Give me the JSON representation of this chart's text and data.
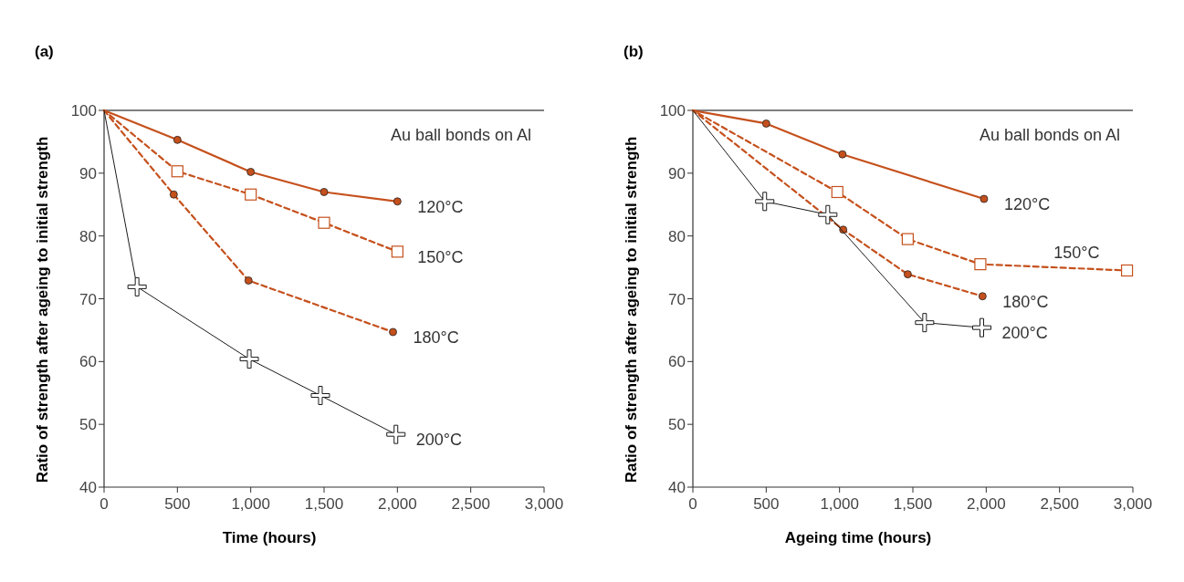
{
  "chart_data": [
    {
      "type": "line",
      "title": "(a)",
      "xlabel": "Time (hours)",
      "ylabel": "Ratio of strength after ageing to initial strength",
      "xlim": [
        0,
        3000
      ],
      "ylim": [
        40,
        100
      ],
      "xticks": [
        0,
        {
          "value": 500,
          "label": "500"
        },
        {
          "value": 1000,
          "label": "1,000"
        },
        {
          "value": 1500,
          "label": "1,500"
        },
        {
          "value": 2000,
          "label": "2,000"
        },
        {
          "value": 2500,
          "label": "2,500"
        },
        {
          "value": 3000,
          "label": "3,000"
        }
      ],
      "yticks": [
        40,
        50,
        60,
        70,
        80,
        90,
        100
      ],
      "annotations": [
        "Au ball bonds on Al"
      ],
      "legend": "right",
      "series": [
        {
          "name": "120°C",
          "color": "#c5501c",
          "marker": "circle",
          "line_style": "solid",
          "x": [
            0,
            500,
            1000,
            1500,
            2000
          ],
          "values": [
            100,
            95.3,
            90.2,
            87.0,
            85.5
          ]
        },
        {
          "name": "150°C",
          "color": "#c5501c",
          "marker": "square",
          "line_style": "dashed",
          "x": [
            0,
            500,
            1000,
            1500,
            2000
          ],
          "values": [
            100,
            90.3,
            86.6,
            82.1,
            77.5
          ]
        },
        {
          "name": "180°C",
          "color": "#c5501c",
          "marker": "circle",
          "line_style": "dashed",
          "x": [
            0,
            475,
            985,
            1970
          ],
          "values": [
            100,
            86.6,
            72.9,
            64.7
          ]
        },
        {
          "name": "200°C",
          "color": "#1a1a1a",
          "marker": "cross",
          "line_style": "solid",
          "x": [
            0,
            225,
            990,
            1475,
            1990
          ],
          "values": [
            100,
            71.9,
            60.4,
            54.6,
            48.4
          ]
        }
      ]
    },
    {
      "type": "line",
      "title": "(b)",
      "xlabel": "Ageing time (hours)",
      "ylabel": "Ratio of strength after ageing to initial strength",
      "xlim": [
        0,
        3000
      ],
      "ylim": [
        40,
        100
      ],
      "xticks": [
        0,
        {
          "value": 500,
          "label": "500"
        },
        {
          "value": 1000,
          "label": "1,000"
        },
        {
          "value": 1500,
          "label": "1,500"
        },
        {
          "value": 2000,
          "label": "2,000"
        },
        {
          "value": 2500,
          "label": "2,500"
        },
        {
          "value": 3000,
          "label": "3,000"
        }
      ],
      "yticks": [
        40,
        50,
        60,
        70,
        80,
        90,
        100
      ],
      "annotations": [
        "Au ball bonds on Al"
      ],
      "legend": "right",
      "series": [
        {
          "name": "120°C",
          "color": "#c5501c",
          "marker": "circle",
          "line_style": "solid",
          "x": [
            0,
            500,
            1020,
            1985
          ],
          "values": [
            100,
            97.9,
            93.0,
            85.9
          ]
        },
        {
          "name": "150°C",
          "color": "#c5501c",
          "marker": "square",
          "line_style": "dashed",
          "x": [
            0,
            985,
            1465,
            1960,
            2960
          ],
          "values": [
            100,
            87.0,
            79.5,
            75.5,
            74.5
          ]
        },
        {
          "name": "180°C",
          "color": "#c5501c",
          "marker": "circle",
          "line_style": "dashed",
          "x": [
            0,
            1025,
            1465,
            1975
          ],
          "values": [
            100,
            81.0,
            73.9,
            70.4
          ]
        },
        {
          "name": "200°C",
          "color": "#1a1a1a",
          "marker": "cross",
          "line_style": "solid",
          "x": [
            0,
            490,
            920,
            1580,
            1970
          ],
          "values": [
            100,
            85.5,
            83.4,
            66.2,
            65.4
          ]
        }
      ]
    }
  ]
}
